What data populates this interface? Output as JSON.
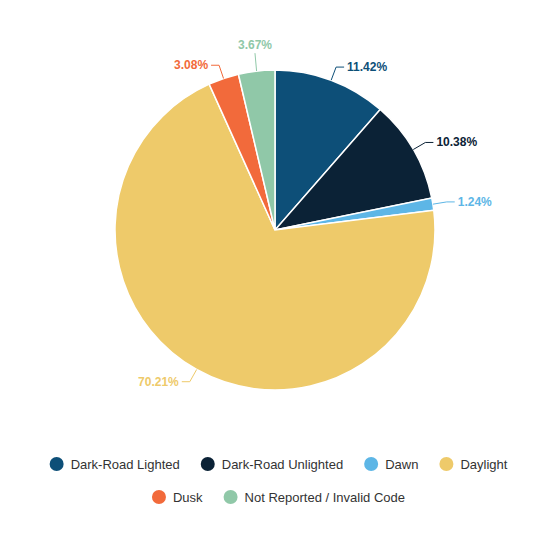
{
  "chart_data": {
    "type": "pie",
    "categories": [
      "Dark-Road Lighted",
      "Dark-Road Unlighted",
      "Dawn",
      "Daylight",
      "Dusk",
      "Not Reported / Invalid Code"
    ],
    "values": [
      11.42,
      10.38,
      1.24,
      70.21,
      3.08,
      3.67
    ],
    "value_labels": [
      "11.42%",
      "10.38%",
      "1.24%",
      "70.21%",
      "3.08%",
      "3.67%"
    ],
    "colors": [
      "#0d4f78",
      "#0b2236",
      "#5db6e6",
      "#eeca6a",
      "#f26a3b",
      "#90c8a8"
    ],
    "data_labels": true,
    "legend": "bottom"
  }
}
